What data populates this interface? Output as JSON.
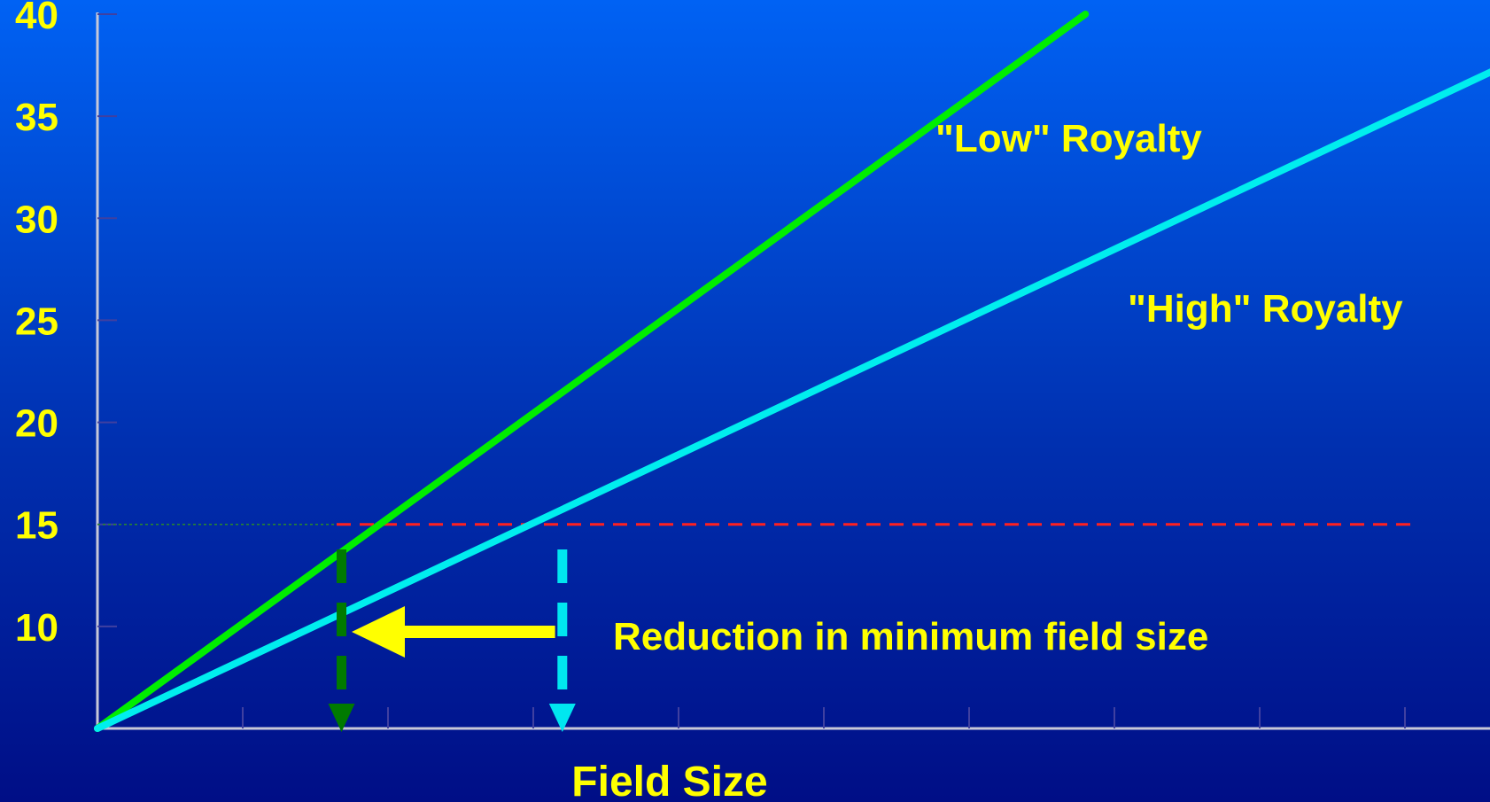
{
  "chart_data": {
    "type": "line",
    "title": "",
    "xlabel": "Field Size",
    "ylabel": "",
    "ylim": [
      5,
      40
    ],
    "yticks": [
      "40",
      "35",
      "30",
      "25",
      "20",
      "15",
      "10"
    ],
    "grid": false,
    "x_tick_count": 10,
    "series": [
      {
        "name": "\"Low\" Royalty",
        "color": "#00ee00",
        "points": [
          [
            0,
            5
          ],
          [
            6.8,
            40
          ]
        ]
      },
      {
        "name": "\"High\" Royalty",
        "color": "#00eeee",
        "points": [
          [
            0,
            5
          ],
          [
            9.6,
            37.2
          ]
        ]
      }
    ],
    "threshold": {
      "y": 15,
      "color": "#ff2020",
      "style": "dashed"
    },
    "markers": [
      {
        "x": 1.68,
        "color": "#007a00",
        "style": "dashed-arrow-down"
      },
      {
        "x": 3.2,
        "color": "#00e6f0",
        "style": "dashed-arrow-down"
      }
    ],
    "annotation": {
      "text": "Reduction in minimum field size",
      "arrow_from_x": 3.15,
      "arrow_to_x": 1.75,
      "y": 10,
      "color": "#ffff00"
    }
  },
  "colors": {
    "axis": "#c8c8d8",
    "tick": "#4040a0",
    "label": "#ffff00"
  }
}
